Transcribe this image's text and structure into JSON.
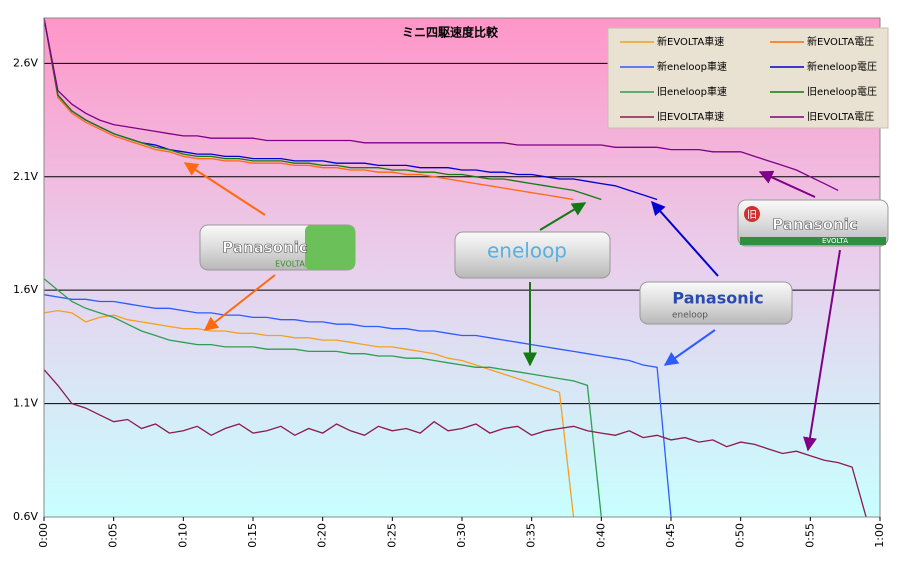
{
  "chart_data": {
    "type": "line",
    "title": "ミニ四駆速度比較",
    "x": [
      0,
      1,
      2,
      3,
      4,
      5,
      6,
      7,
      8,
      9,
      10,
      11,
      12,
      13,
      14,
      15,
      16,
      17,
      18,
      19,
      20,
      21,
      22,
      23,
      24,
      25,
      26,
      27,
      28,
      29,
      30,
      31,
      32,
      33,
      34,
      35,
      36,
      37,
      38,
      39,
      40,
      41,
      42,
      43,
      44,
      45,
      46,
      47,
      48,
      49,
      50,
      51,
      52,
      53,
      54,
      55,
      56,
      57,
      58,
      59
    ],
    "xlim": [
      0,
      60
    ],
    "xticks": [
      {
        "value": 0,
        "label": "0:00"
      },
      {
        "value": 5,
        "label": "0:05"
      },
      {
        "value": 10,
        "label": "0:10"
      },
      {
        "value": 15,
        "label": "0:15"
      },
      {
        "value": 20,
        "label": "0:20"
      },
      {
        "value": 25,
        "label": "0:25"
      },
      {
        "value": 30,
        "label": "0:30"
      },
      {
        "value": 35,
        "label": "0:35"
      },
      {
        "value": 40,
        "label": "0:40"
      },
      {
        "value": 45,
        "label": "0:45"
      },
      {
        "value": 50,
        "label": "0:50"
      },
      {
        "value": 55,
        "label": "0:55"
      },
      {
        "value": 60,
        "label": "1:00"
      }
    ],
    "ylim": [
      0.6,
      2.8
    ],
    "yticks": [
      {
        "value": 0.6,
        "label": "0.6V"
      },
      {
        "value": 1.1,
        "label": "1.1V"
      },
      {
        "value": 1.6,
        "label": "1.6V"
      },
      {
        "value": 2.1,
        "label": "2.1V"
      },
      {
        "value": 2.6,
        "label": "2.6V"
      }
    ],
    "grid": true,
    "legend": "top-right",
    "series": [
      {
        "name": "新EVOLTA車速",
        "color": "#f5a020",
        "values": [
          1.5,
          1.51,
          1.5,
          1.46,
          1.48,
          1.49,
          1.47,
          1.46,
          1.45,
          1.44,
          1.43,
          1.43,
          1.42,
          1.42,
          1.41,
          1.41,
          1.4,
          1.4,
          1.39,
          1.39,
          1.38,
          1.38,
          1.37,
          1.36,
          1.35,
          1.35,
          1.34,
          1.33,
          1.32,
          1.3,
          1.29,
          1.27,
          1.25,
          1.23,
          1.21,
          1.19,
          1.17,
          1.15,
          0.6,
          null,
          null,
          null,
          null,
          null,
          null,
          null,
          null,
          null,
          null,
          null,
          null,
          null,
          null,
          null,
          null,
          null,
          null,
          null,
          null,
          null
        ]
      },
      {
        "name": "新EVOLTA電圧",
        "color": "#ff6a10",
        "values": [
          2.8,
          2.45,
          2.38,
          2.34,
          2.31,
          2.28,
          2.26,
          2.24,
          2.22,
          2.21,
          2.19,
          2.18,
          2.18,
          2.17,
          2.17,
          2.16,
          2.16,
          2.16,
          2.15,
          2.15,
          2.14,
          2.14,
          2.13,
          2.13,
          2.12,
          2.12,
          2.11,
          2.11,
          2.1,
          2.09,
          2.08,
          2.07,
          2.06,
          2.05,
          2.04,
          2.03,
          2.02,
          2.01,
          2.0,
          null,
          null,
          null,
          null,
          null,
          null,
          null,
          null,
          null,
          null,
          null,
          null,
          null,
          null,
          null,
          null,
          null,
          null,
          null,
          null,
          null
        ]
      },
      {
        "name": "新eneloop車速",
        "color": "#2f5bff",
        "values": [
          1.58,
          1.57,
          1.56,
          1.56,
          1.55,
          1.55,
          1.54,
          1.53,
          1.52,
          1.52,
          1.51,
          1.5,
          1.5,
          1.49,
          1.49,
          1.48,
          1.48,
          1.47,
          1.47,
          1.46,
          1.46,
          1.45,
          1.45,
          1.44,
          1.44,
          1.43,
          1.43,
          1.42,
          1.42,
          1.41,
          1.4,
          1.4,
          1.39,
          1.38,
          1.37,
          1.36,
          1.35,
          1.34,
          1.33,
          1.32,
          1.31,
          1.3,
          1.29,
          1.27,
          1.26,
          0.6,
          null,
          null,
          null,
          null,
          null,
          null,
          null,
          null,
          null,
          null,
          null,
          null,
          null,
          null
        ]
      },
      {
        "name": "新eneloop電圧",
        "color": "#0000d0",
        "values": [
          2.8,
          2.46,
          2.39,
          2.35,
          2.32,
          2.29,
          2.27,
          2.25,
          2.24,
          2.22,
          2.21,
          2.2,
          2.2,
          2.19,
          2.19,
          2.18,
          2.18,
          2.18,
          2.17,
          2.17,
          2.17,
          2.16,
          2.16,
          2.16,
          2.15,
          2.15,
          2.15,
          2.14,
          2.14,
          2.14,
          2.13,
          2.13,
          2.12,
          2.12,
          2.11,
          2.11,
          2.1,
          2.09,
          2.09,
          2.08,
          2.07,
          2.06,
          2.04,
          2.02,
          2.0,
          null,
          null,
          null,
          null,
          null,
          null,
          null,
          null,
          null,
          null,
          null,
          null,
          null,
          null,
          null
        ]
      },
      {
        "name": "旧eneloop車速",
        "color": "#2e9e50",
        "values": [
          1.65,
          1.6,
          1.55,
          1.52,
          1.5,
          1.48,
          1.45,
          1.42,
          1.4,
          1.38,
          1.37,
          1.36,
          1.36,
          1.35,
          1.35,
          1.35,
          1.34,
          1.34,
          1.34,
          1.33,
          1.33,
          1.33,
          1.32,
          1.32,
          1.31,
          1.31,
          1.3,
          1.3,
          1.29,
          1.28,
          1.27,
          1.26,
          1.26,
          1.25,
          1.24,
          1.23,
          1.22,
          1.21,
          1.2,
          1.18,
          0.6,
          null,
          null,
          null,
          null,
          null,
          null,
          null,
          null,
          null,
          null,
          null,
          null,
          null,
          null,
          null,
          null,
          null,
          null,
          null
        ]
      },
      {
        "name": "旧eneloop電圧",
        "color": "#137a13",
        "values": [
          2.8,
          2.46,
          2.39,
          2.35,
          2.32,
          2.29,
          2.27,
          2.25,
          2.23,
          2.22,
          2.2,
          2.19,
          2.19,
          2.18,
          2.18,
          2.17,
          2.17,
          2.17,
          2.16,
          2.16,
          2.15,
          2.15,
          2.14,
          2.14,
          2.14,
          2.13,
          2.13,
          2.12,
          2.12,
          2.11,
          2.11,
          2.1,
          2.09,
          2.09,
          2.08,
          2.07,
          2.06,
          2.05,
          2.04,
          2.02,
          2.0,
          null,
          null,
          null,
          null,
          null,
          null,
          null,
          null,
          null,
          null,
          null,
          null,
          null,
          null,
          null,
          null,
          null,
          null,
          null
        ]
      },
      {
        "name": "旧EVOLTA車速",
        "color": "#8c1a4c",
        "values": [
          1.25,
          1.18,
          1.1,
          1.08,
          1.05,
          1.02,
          1.03,
          0.99,
          1.01,
          0.97,
          0.98,
          1.0,
          0.96,
          0.99,
          1.01,
          0.97,
          0.98,
          1.0,
          0.96,
          0.99,
          0.97,
          1.01,
          0.98,
          0.96,
          1.0,
          0.98,
          0.99,
          0.97,
          1.02,
          0.98,
          0.99,
          1.01,
          0.97,
          0.99,
          1.0,
          0.96,
          0.98,
          0.99,
          1.0,
          0.98,
          0.97,
          0.96,
          0.98,
          0.95,
          0.96,
          0.94,
          0.95,
          0.93,
          0.94,
          0.91,
          0.93,
          0.92,
          0.9,
          0.88,
          0.89,
          0.87,
          0.85,
          0.84,
          0.82,
          0.6
        ]
      },
      {
        "name": "旧EVOLTA電圧",
        "color": "#800088",
        "values": [
          2.8,
          2.48,
          2.42,
          2.38,
          2.35,
          2.33,
          2.32,
          2.31,
          2.3,
          2.29,
          2.28,
          2.28,
          2.27,
          2.27,
          2.27,
          2.27,
          2.26,
          2.26,
          2.26,
          2.26,
          2.26,
          2.26,
          2.26,
          2.25,
          2.25,
          2.25,
          2.25,
          2.25,
          2.25,
          2.25,
          2.25,
          2.25,
          2.25,
          2.25,
          2.24,
          2.24,
          2.24,
          2.24,
          2.24,
          2.24,
          2.24,
          2.23,
          2.23,
          2.23,
          2.23,
          2.22,
          2.22,
          2.22,
          2.21,
          2.21,
          2.21,
          2.19,
          2.17,
          2.15,
          2.13,
          2.1,
          2.07,
          2.04,
          null,
          null
        ]
      }
    ],
    "annotations": [
      "Panasonic",
      "EVOLTA",
      "eneloop",
      "Panasonic",
      "eneloop",
      "Panasonic",
      "EVOLTA",
      "旧"
    ]
  }
}
